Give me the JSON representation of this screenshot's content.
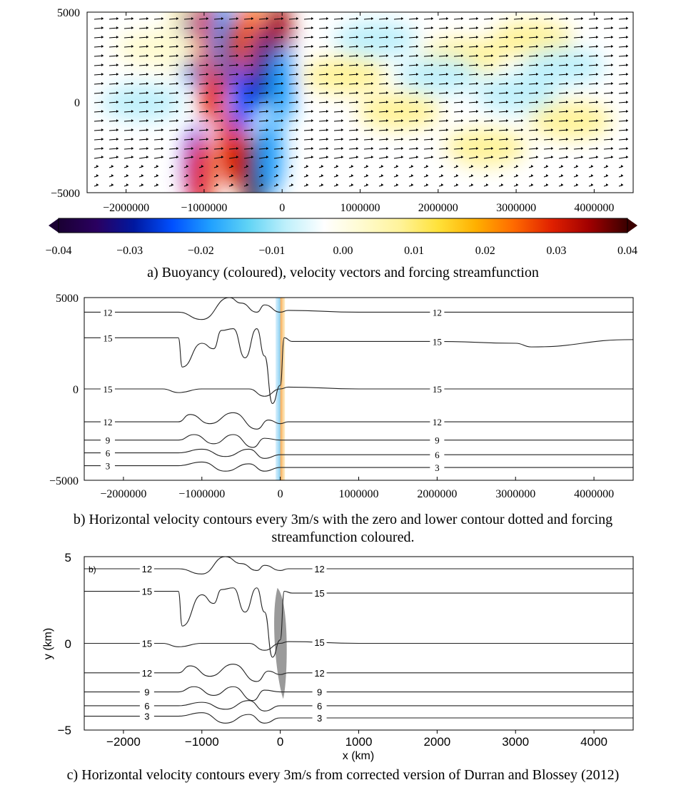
{
  "colors": {
    "buoyancy_scale": [
      "#1a0033",
      "#2a0060",
      "#0018a0",
      "#0050ff",
      "#20a0ff",
      "#5fd3f5",
      "#bff0fb",
      "#ffffff",
      "#fffbd0",
      "#fff39a",
      "#ffe23a",
      "#ffb000",
      "#ff6a00",
      "#e02000",
      "#a00000",
      "#3a0000"
    ],
    "forcing_negative": "#7ecbf2",
    "forcing_positive": "#f7a64a",
    "contour": "#222222",
    "forcing_gray": "#9a9a9a",
    "vector": "#000000"
  },
  "panel_a": {
    "caption": "a) Buoyancy (coloured), velocity vectors and forcing streamfunction",
    "y_ticks": [
      "5000",
      "0",
      "−5000"
    ],
    "x_ticks": [
      "−2000000",
      "−1000000",
      "0",
      "1000000",
      "2000000",
      "3000000",
      "4000000"
    ],
    "colorbar_ticks": [
      "−0.04",
      "−0.03",
      "−0.02",
      "−0.01",
      "0.00",
      "0.01",
      "0.02",
      "0.03",
      "0.04"
    ]
  },
  "panel_b": {
    "caption_line1": "b) Horizontal velocity contours every 3m/s with the zero and lower contour dotted and forcing",
    "caption_line2": "streamfunction coloured.",
    "y_ticks": [
      "5000",
      "0",
      "−5000"
    ],
    "x_ticks": [
      "−2000000",
      "−1000000",
      "0",
      "1000000",
      "2000000",
      "3000000",
      "4000000"
    ]
  },
  "panel_c": {
    "caption": "c) Horizontal velocity contours every 3m/s from corrected version of Durran and Blossey (2012)",
    "panel_tag": "b)",
    "ylabel": "y (km)",
    "xlabel": "x (km)",
    "y_ticks": [
      "5",
      "0",
      "−5"
    ],
    "x_ticks": [
      "−2000",
      "−1000",
      "0",
      "1000",
      "2000",
      "3000",
      "4000"
    ]
  },
  "chart_data": [
    {
      "type": "heatmap",
      "panel": "a",
      "title": "a) Buoyancy (coloured), velocity vectors and forcing streamfunction",
      "xlim": [
        -2500000,
        4500000
      ],
      "ylim": [
        -5000,
        5000
      ],
      "colorbar_range": [
        -0.04,
        0.04
      ],
      "colorbar_ticks": [
        -0.04,
        -0.03,
        -0.02,
        -0.01,
        0.0,
        0.01,
        0.02,
        0.03,
        0.04
      ],
      "blobs": [
        {
          "x": -1250000,
          "y": 3500,
          "value": 0.015
        },
        {
          "x": -1150000,
          "y": 3000,
          "value": -0.02
        },
        {
          "x": -1000000,
          "y": 3500,
          "value": 0.03
        },
        {
          "x": -900000,
          "y": 1000,
          "value": 0.03
        },
        {
          "x": -1100000,
          "y": -3500,
          "value": -0.025
        },
        {
          "x": -1050000,
          "y": -4000,
          "value": 0.03
        },
        {
          "x": -750000,
          "y": 3500,
          "value": -0.02
        },
        {
          "x": -600000,
          "y": 2500,
          "value": 0.035
        },
        {
          "x": -650000,
          "y": -2500,
          "value": 0.03
        },
        {
          "x": -500000,
          "y": 500,
          "value": -0.025
        },
        {
          "x": -400000,
          "y": 3500,
          "value": 0.025
        },
        {
          "x": -350000,
          "y": -4000,
          "value": 0.04
        },
        {
          "x": -250000,
          "y": 2000,
          "value": -0.03
        },
        {
          "x": -150000,
          "y": -3000,
          "value": -0.02
        },
        {
          "x": -50000,
          "y": 3500,
          "value": 0.035
        },
        {
          "x": 0,
          "y": 1000,
          "value": -0.02
        },
        {
          "x": 800000,
          "y": 1500,
          "value": 0.008
        },
        {
          "x": 1500000,
          "y": -500,
          "value": 0.008
        },
        {
          "x": 2300000,
          "y": 2500,
          "value": 0.008
        },
        {
          "x": 2600000,
          "y": -2500,
          "value": 0.006
        },
        {
          "x": 3200000,
          "y": 3500,
          "value": 0.006
        },
        {
          "x": 3700000,
          "y": -1000,
          "value": 0.006
        },
        {
          "x": 1200000,
          "y": 3500,
          "value": -0.006
        },
        {
          "x": 2000000,
          "y": 1500,
          "value": -0.006
        },
        {
          "x": 3000000,
          "y": 500,
          "value": -0.007
        },
        {
          "x": 3600000,
          "y": 2000,
          "value": -0.006
        },
        {
          "x": 1700000,
          "y": -3500,
          "value": -0.005
        },
        {
          "x": -1800000,
          "y": 0,
          "value": -0.006
        },
        {
          "x": -1600000,
          "y": 3000,
          "value": 0.004
        },
        {
          "x": -2200000,
          "y": -2500,
          "value": -0.005
        }
      ]
    },
    {
      "type": "line",
      "panel": "b",
      "title": "b) Horizontal velocity contours every 3m/s with the zero and lower contour dotted and forcing streamfunction coloured.",
      "xlim": [
        -2500000,
        4500000
      ],
      "ylim": [
        -5000,
        5000
      ],
      "contour_interval": 3,
      "series": [
        {
          "name": "12",
          "x": [
            -2500000,
            -1300000,
            -1000000,
            -650000,
            -500000,
            -300000,
            -200000,
            0,
            100000,
            1000000,
            2000000,
            3000000,
            4500000
          ],
          "y": [
            4200,
            4200,
            3800,
            5000,
            4700,
            4200,
            4600,
            4200,
            4300,
            4200,
            4200,
            4200,
            4200
          ]
        },
        {
          "name": "15",
          "x": [
            -2500000,
            -1300000,
            -1250000,
            -1000000,
            -850000,
            -750000,
            -600000,
            -450000,
            -300000,
            -200000,
            -100000,
            0,
            50000,
            150000,
            1000000,
            2000000,
            3000000,
            3200000,
            4500000
          ],
          "y": [
            2800,
            2800,
            1200,
            2500,
            2200,
            3200,
            3300,
            1700,
            3300,
            1800,
            -800,
            200,
            2800,
            2600,
            2600,
            2600,
            2500,
            2300,
            2700
          ]
        },
        {
          "name": "15",
          "x": [
            -2500000,
            -1500000,
            -1300000,
            -1000000,
            -700000,
            -400000,
            -200000,
            0,
            100000,
            1000000,
            2000000,
            3000000,
            4500000
          ],
          "y": [
            0,
            0,
            -200,
            0,
            0,
            0,
            -400,
            0,
            100,
            0,
            0,
            0,
            0
          ]
        },
        {
          "name": "12",
          "x": [
            -2500000,
            -1300000,
            -1150000,
            -900000,
            -600000,
            -300000,
            -150000,
            0,
            100000,
            1000000,
            2000000,
            3000000,
            4500000
          ],
          "y": [
            -1800,
            -1800,
            -1400,
            -1900,
            -1300,
            -2200,
            -1700,
            -1900,
            -1800,
            -1800,
            -1800,
            -1800,
            -1800
          ]
        },
        {
          "name": "9",
          "x": [
            -2500000,
            -1300000,
            -1100000,
            -850000,
            -600000,
            -350000,
            -200000,
            0,
            1000000,
            2000000,
            3000000,
            4500000
          ],
          "y": [
            -2800,
            -2800,
            -2500,
            -3000,
            -2500,
            -3200,
            -2700,
            -2800,
            -2800,
            -2800,
            -2800,
            -2800
          ]
        },
        {
          "name": "6",
          "x": [
            -2500000,
            -1300000,
            -1000000,
            -700000,
            -400000,
            -200000,
            0,
            1000000,
            2000000,
            3000000,
            4500000
          ],
          "y": [
            -3500,
            -3500,
            -3300,
            -3700,
            -3300,
            -3800,
            -3600,
            -3600,
            -3600,
            -3600,
            -3600
          ]
        },
        {
          "name": "3",
          "x": [
            -2500000,
            -1300000,
            -1000000,
            -700000,
            -400000,
            -200000,
            0,
            1000000,
            2000000,
            3000000,
            4500000
          ],
          "y": [
            -4200,
            -4200,
            -4000,
            -4500,
            -4100,
            -4500,
            -4300,
            -4300,
            -4300,
            -4300,
            -4300
          ]
        }
      ]
    },
    {
      "type": "line",
      "panel": "c",
      "title": "c) Horizontal velocity contours every 3m/s from corrected version of Durran and Blossey (2012)",
      "xlabel": "x (km)",
      "ylabel": "y (km)",
      "xlim": [
        -2500,
        4500
      ],
      "ylim": [
        -5,
        5
      ],
      "series": [
        {
          "name": "12",
          "x": [
            -2500,
            -1300,
            -1000,
            -700,
            -500,
            -300,
            -200,
            0,
            100,
            1000,
            2000,
            3000,
            4500
          ],
          "y": [
            4.3,
            4.3,
            4.0,
            5.0,
            4.6,
            4.2,
            4.5,
            4.2,
            4.3,
            4.3,
            4.3,
            4.3,
            4.3
          ]
        },
        {
          "name": "15",
          "x": [
            -2500,
            -1300,
            -1250,
            -1000,
            -850,
            -750,
            -600,
            -450,
            -300,
            -200,
            -100,
            0,
            50,
            150,
            1000,
            2000,
            3000,
            4500
          ],
          "y": [
            3.0,
            3.0,
            1.0,
            2.8,
            2.3,
            3.1,
            3.2,
            1.8,
            3.2,
            1.8,
            -0.8,
            0.2,
            3.0,
            2.9,
            2.9,
            2.9,
            2.9,
            2.9
          ]
        },
        {
          "name": "15",
          "x": [
            -2500,
            -1500,
            -1300,
            -1000,
            -700,
            -400,
            -200,
            0,
            100,
            1000,
            2000,
            3000,
            4500
          ],
          "y": [
            0,
            0,
            -0.2,
            0,
            0,
            0,
            -0.4,
            0,
            0.1,
            0,
            0,
            0,
            0
          ]
        },
        {
          "name": "12",
          "x": [
            -2500,
            -1300,
            -1150,
            -900,
            -600,
            -300,
            -150,
            0,
            100,
            1000,
            2000,
            3000,
            4500
          ],
          "y": [
            -1.7,
            -1.7,
            -1.3,
            -1.9,
            -1.2,
            -2.2,
            -1.6,
            -1.8,
            -1.7,
            -1.7,
            -1.7,
            -1.7,
            -1.7
          ]
        },
        {
          "name": "9",
          "x": [
            -2500,
            -1300,
            -1100,
            -850,
            -600,
            -350,
            -200,
            0,
            1000,
            2000,
            3000,
            4500
          ],
          "y": [
            -2.8,
            -2.8,
            -2.5,
            -3.0,
            -2.5,
            -3.3,
            -2.7,
            -2.8,
            -2.8,
            -2.8,
            -2.8,
            -2.8
          ]
        },
        {
          "name": "6",
          "x": [
            -2500,
            -1300,
            -1000,
            -700,
            -400,
            -200,
            0,
            1000,
            2000,
            3000,
            4500
          ],
          "y": [
            -3.6,
            -3.6,
            -3.4,
            -3.8,
            -3.3,
            -3.9,
            -3.6,
            -3.6,
            -3.6,
            -3.6,
            -3.6
          ]
        },
        {
          "name": "3",
          "x": [
            -2500,
            -1300,
            -1000,
            -700,
            -400,
            -200,
            0,
            1000,
            2000,
            3000,
            4500
          ],
          "y": [
            -4.2,
            -4.2,
            -4.0,
            -4.6,
            -4.1,
            -4.6,
            -4.3,
            -4.3,
            -4.3,
            -4.3,
            -4.3
          ]
        }
      ]
    }
  ]
}
